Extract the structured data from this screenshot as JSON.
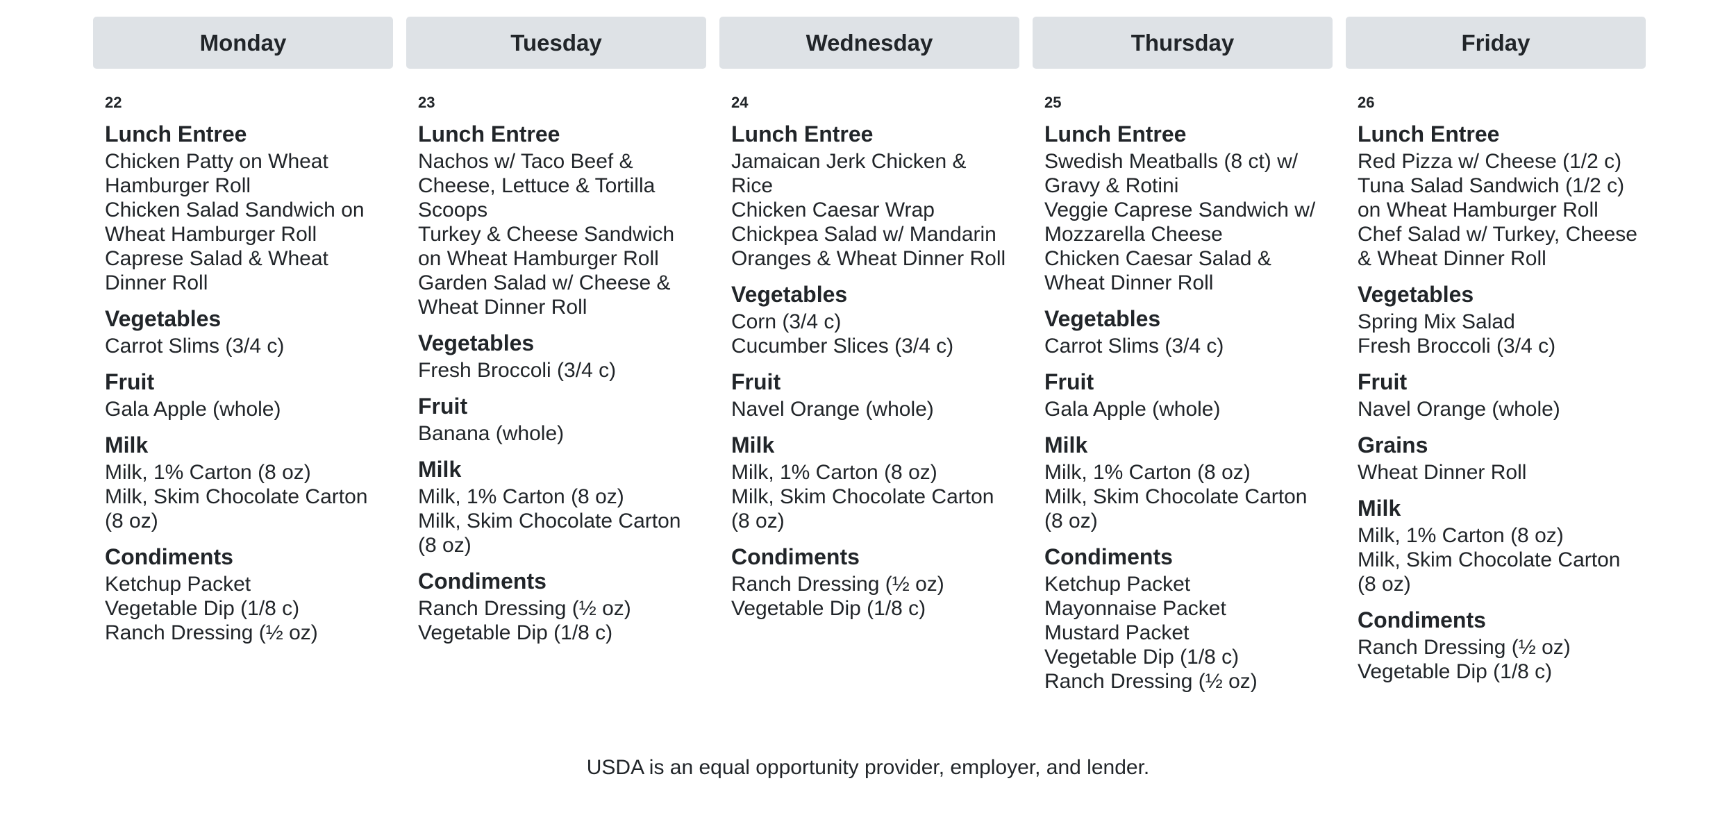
{
  "days": [
    {
      "name": "Monday",
      "date": "22",
      "sections": [
        {
          "title": "Lunch Entree",
          "items": [
            "Chicken Patty on Wheat Hamburger Roll",
            "Chicken Salad Sandwich on Wheat Hamburger Roll",
            "Caprese Salad & Wheat Dinner Roll"
          ]
        },
        {
          "title": "Vegetables",
          "items": [
            "Carrot Slims (3/4 c)"
          ]
        },
        {
          "title": "Fruit",
          "items": [
            "Gala Apple (whole)"
          ]
        },
        {
          "title": "Milk",
          "items": [
            "Milk, 1% Carton (8 oz)",
            "Milk, Skim Chocolate Carton (8 oz)"
          ]
        },
        {
          "title": "Condiments",
          "items": [
            "Ketchup Packet",
            "Vegetable Dip (1/8 c)",
            "Ranch Dressing (½ oz)"
          ]
        }
      ]
    },
    {
      "name": "Tuesday",
      "date": "23",
      "sections": [
        {
          "title": "Lunch Entree",
          "items": [
            "Nachos w/ Taco Beef & Cheese, Lettuce & Tortilla Scoops",
            "Turkey & Cheese Sandwich on Wheat Hamburger Roll",
            "Garden Salad w/ Cheese & Wheat Dinner Roll"
          ]
        },
        {
          "title": "Vegetables",
          "items": [
            "Fresh Broccoli (3/4 c)"
          ]
        },
        {
          "title": "Fruit",
          "items": [
            "Banana (whole)"
          ]
        },
        {
          "title": "Milk",
          "items": [
            "Milk, 1% Carton (8 oz)",
            "Milk, Skim Chocolate Carton (8 oz)"
          ]
        },
        {
          "title": "Condiments",
          "items": [
            "Ranch Dressing (½ oz)",
            "Vegetable Dip (1/8 c)"
          ]
        }
      ]
    },
    {
      "name": "Wednesday",
      "date": "24",
      "sections": [
        {
          "title": "Lunch Entree",
          "items": [
            "Jamaican Jerk Chicken & Rice",
            "Chicken Caesar Wrap",
            "Chickpea Salad w/ Mandarin Oranges & Wheat Dinner Roll"
          ]
        },
        {
          "title": "Vegetables",
          "items": [
            "Corn (3/4 c)",
            "Cucumber Slices (3/4 c)"
          ]
        },
        {
          "title": "Fruit",
          "items": [
            "Navel Orange (whole)"
          ]
        },
        {
          "title": "Milk",
          "items": [
            "Milk, 1% Carton (8 oz)",
            "Milk, Skim Chocolate Carton (8 oz)"
          ]
        },
        {
          "title": "Condiments",
          "items": [
            "Ranch Dressing (½ oz)",
            "Vegetable Dip (1/8 c)"
          ]
        }
      ]
    },
    {
      "name": "Thursday",
      "date": "25",
      "sections": [
        {
          "title": "Lunch Entree",
          "items": [
            "Swedish Meatballs (8 ct) w/ Gravy & Rotini",
            "Veggie Caprese Sandwich w/ Mozzarella Cheese",
            "Chicken Caesar Salad & Wheat Dinner Roll"
          ]
        },
        {
          "title": "Vegetables",
          "items": [
            "Carrot Slims (3/4 c)"
          ]
        },
        {
          "title": "Fruit",
          "items": [
            "Gala Apple (whole)"
          ]
        },
        {
          "title": "Milk",
          "items": [
            "Milk, 1% Carton (8 oz)",
            "Milk, Skim Chocolate Carton (8 oz)"
          ]
        },
        {
          "title": "Condiments",
          "items": [
            "Ketchup Packet",
            "Mayonnaise Packet",
            "Mustard Packet",
            "Vegetable Dip (1/8 c)",
            "Ranch Dressing (½ oz)"
          ]
        }
      ]
    },
    {
      "name": "Friday",
      "date": "26",
      "sections": [
        {
          "title": "Lunch Entree",
          "items": [
            "Red Pizza w/ Cheese (1/2 c)",
            "Tuna Salad Sandwich (1/2 c) on Wheat Hamburger Roll",
            "Chef Salad w/ Turkey, Cheese & Wheat Dinner Roll"
          ]
        },
        {
          "title": "Vegetables",
          "items": [
            "Spring Mix Salad",
            "Fresh Broccoli (3/4 c)"
          ]
        },
        {
          "title": "Fruit",
          "items": [
            "Navel Orange (whole)"
          ]
        },
        {
          "title": "Grains",
          "items": [
            "Wheat Dinner Roll"
          ]
        },
        {
          "title": "Milk",
          "items": [
            "Milk, 1% Carton (8 oz)",
            "Milk, Skim Chocolate Carton (8 oz)"
          ]
        },
        {
          "title": "Condiments",
          "items": [
            "Ranch Dressing (½ oz)",
            "Vegetable Dip (1/8 c)"
          ]
        }
      ]
    }
  ],
  "footer": "USDA is an equal opportunity provider, employer, and lender."
}
